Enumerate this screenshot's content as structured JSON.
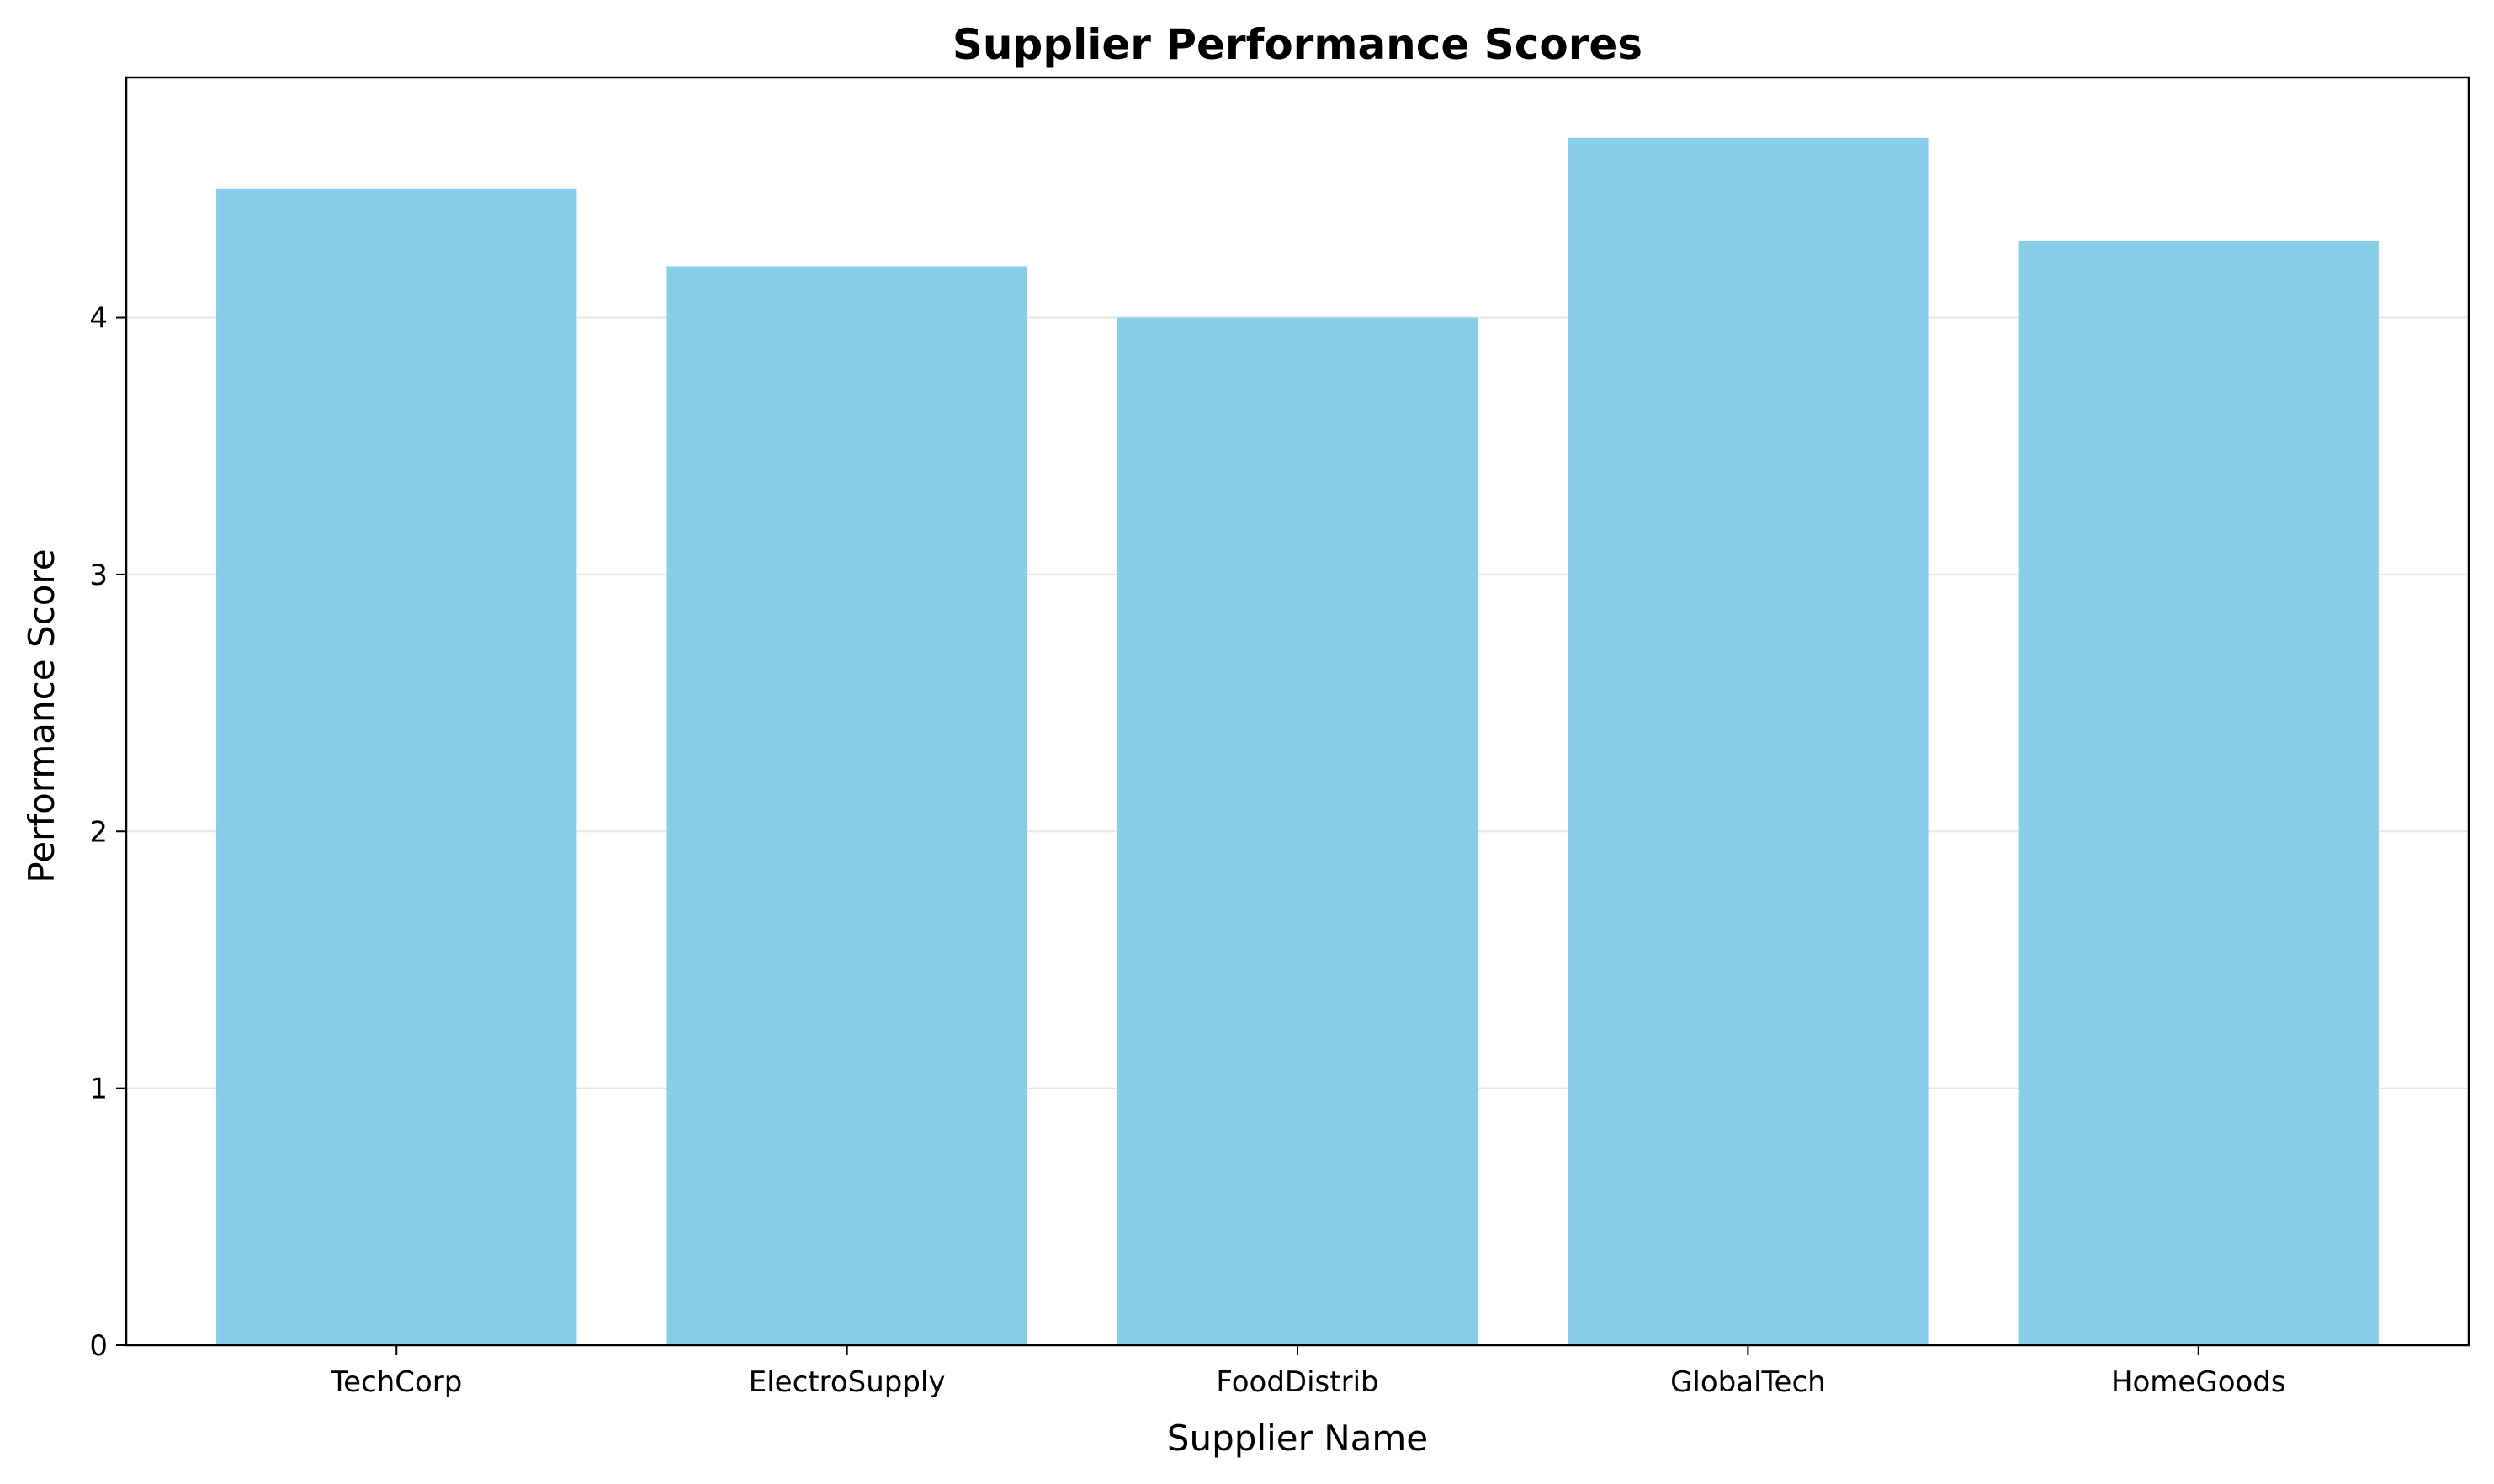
{
  "chart_data": {
    "type": "bar",
    "title": "Supplier Performance Scores",
    "xlabel": "Supplier Name",
    "ylabel": "Performance Score",
    "categories": [
      "TechCorp",
      "ElectroSupply",
      "FoodDistrib",
      "GlobalTech",
      "HomeGoods"
    ],
    "values": [
      4.5,
      4.2,
      4.0,
      4.7,
      4.3
    ],
    "yticks": [
      "0",
      "1",
      "2",
      "3",
      "4"
    ],
    "ylim": [
      0,
      4.935
    ],
    "grid": "y-axis",
    "legend": "none",
    "colors": {
      "bar": "#87ceeb",
      "grid": "#e6e6e6",
      "axes": "#000000"
    }
  }
}
